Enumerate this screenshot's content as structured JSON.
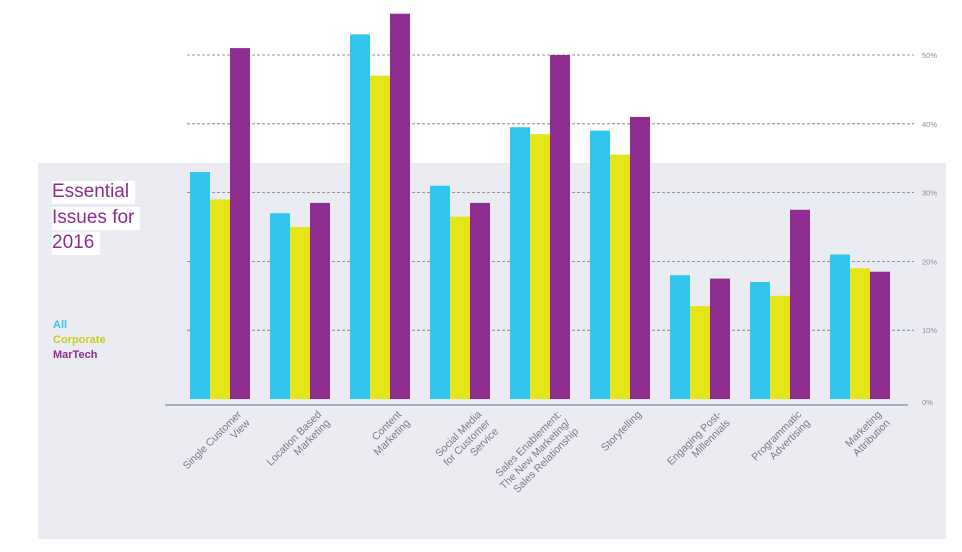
{
  "title_lines": [
    "Essential",
    "Issues for",
    "2016"
  ],
  "legend": [
    {
      "label": "All",
      "color": "#32c5ee"
    },
    {
      "label": "Corporate",
      "color": "#c6ce1a"
    },
    {
      "label": "MarTech",
      "color": "#8e2c8f"
    }
  ],
  "chart_data": {
    "type": "bar",
    "categories": [
      "Single Customer View",
      "Location Based Marketing",
      "Content Marketing",
      "Social Media for Customer Service",
      "Sales Enablement: The New Marketing/ Sales Relationship",
      "Storytelling",
      "Engaging Post-Millennials",
      "Programmatic Advertising",
      "Marketing Attribution"
    ],
    "category_label_lines": [
      [
        "Single Customer",
        "View"
      ],
      [
        "Location Based",
        "Marketing"
      ],
      [
        "Content",
        "Marketing"
      ],
      [
        "Social Media",
        "for Customer",
        "Service"
      ],
      [
        "Sales Enablement:",
        "The New Marketing/",
        "Sales Relationship"
      ],
      [
        "Storytelling"
      ],
      [
        "Engaging Post-",
        "Millennials"
      ],
      [
        "Programmatic",
        "Advertising"
      ],
      [
        "Marketing",
        "Attribution"
      ]
    ],
    "series": [
      {
        "name": "All",
        "color": "#32c5ee",
        "values": [
          33,
          27,
          53,
          31,
          39.5,
          39,
          18,
          17,
          21
        ]
      },
      {
        "name": "Corporate",
        "color": "#e5e619",
        "values": [
          29,
          25,
          47,
          26.5,
          38.5,
          35.5,
          13.5,
          15,
          19
        ]
      },
      {
        "name": "MarTech",
        "color": "#8e2c8f",
        "values": [
          51,
          28.5,
          56,
          28.5,
          50,
          41,
          17.5,
          27.5,
          18.5
        ]
      }
    ],
    "yticks": [
      0,
      10,
      20,
      30,
      40,
      50
    ],
    "ytick_labels": [
      "0%",
      "10%",
      "20%",
      "30%",
      "40%",
      "50%"
    ],
    "ylim": [
      0,
      56
    ],
    "grid": true,
    "legend_position": "left"
  }
}
